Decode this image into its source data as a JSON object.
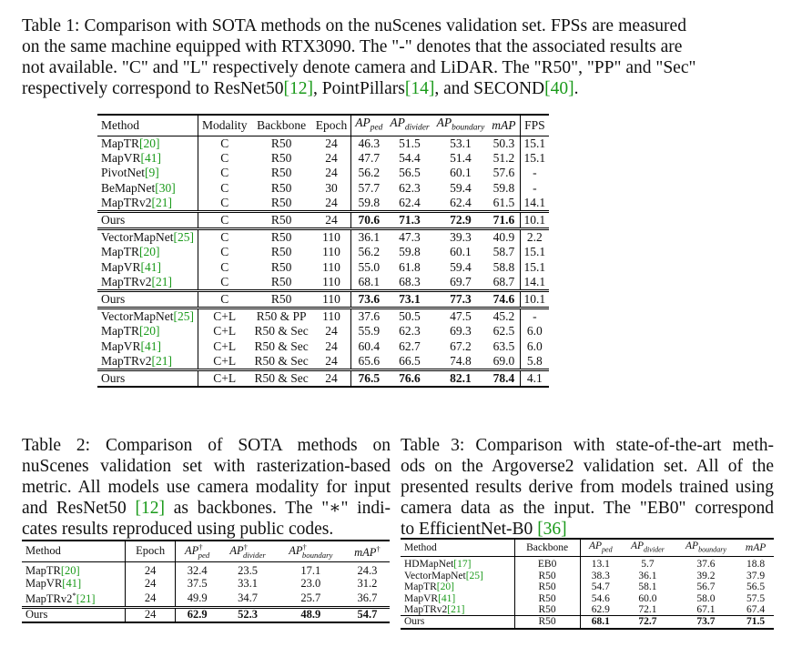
{
  "table1": {
    "caption_lines": [
      "Table 1:  Comparison with SOTA methods on the nuScenes validation set.  FPSs are measured",
      "on the same machine equipped with RTX3090.  The \"-\" denotes that the associated results are",
      "not available.  \"C\" and \"L\" respectively denote camera and LiDAR. The \"R50\", \"PP\" and \"Sec\"",
      "respectively correspond to ResNet50[12], PointPillars[14], and SECOND[40]."
    ],
    "headers": {
      "method": "Method",
      "modality": "Modality",
      "backbone": "Backbone",
      "epoch": "Epoch",
      "ap_ped": "AP",
      "ap_ped_sub": "ped",
      "ap_div": "AP",
      "ap_div_sub": "divider",
      "ap_bnd": "AP",
      "ap_bnd_sub": "boundary",
      "map": "mAP",
      "fps": "FPS"
    },
    "groups": [
      [
        {
          "method": "MapTR",
          "cite": "[20]",
          "mod": "C",
          "bb": "R50",
          "ep": "24",
          "ped": "46.3",
          "div": "51.5",
          "bnd": "53.1",
          "map": "50.3",
          "fps": "15.1"
        },
        {
          "method": "MapVR",
          "cite": "[41]",
          "mod": "C",
          "bb": "R50",
          "ep": "24",
          "ped": "47.7",
          "div": "54.4",
          "bnd": "51.4",
          "map": "51.2",
          "fps": "15.1"
        },
        {
          "method": "PivotNet",
          "cite": "[9]",
          "mod": "C",
          "bb": "R50",
          "ep": "24",
          "ped": "56.2",
          "div": "56.5",
          "bnd": "60.1",
          "map": "57.6",
          "fps": "-"
        },
        {
          "method": "BeMapNet",
          "cite": "[30]",
          "mod": "C",
          "bb": "R50",
          "ep": "30",
          "ped": "57.7",
          "div": "62.3",
          "bnd": "59.4",
          "map": "59.8",
          "fps": "-"
        },
        {
          "method": "MapTRv2",
          "cite": "[21]",
          "mod": "C",
          "bb": "R50",
          "ep": "24",
          "ped": "59.8",
          "div": "62.4",
          "bnd": "62.4",
          "map": "61.5",
          "fps": "14.1"
        }
      ],
      [
        {
          "method": "Ours",
          "cite": "",
          "mod": "C",
          "bb": "R50",
          "ep": "24",
          "ped": "70.6",
          "div": "71.3",
          "bnd": "72.9",
          "map": "71.6",
          "fps": "10.1",
          "bold": true
        }
      ],
      [
        {
          "method": "VectorMapNet",
          "cite": "[25]",
          "mod": "C",
          "bb": "R50",
          "ep": "110",
          "ped": "36.1",
          "div": "47.3",
          "bnd": "39.3",
          "map": "40.9",
          "fps": "2.2"
        },
        {
          "method": "MapTR",
          "cite": "[20]",
          "mod": "C",
          "bb": "R50",
          "ep": "110",
          "ped": "56.2",
          "div": "59.8",
          "bnd": "60.1",
          "map": "58.7",
          "fps": "15.1"
        },
        {
          "method": "MapVR",
          "cite": "[41]",
          "mod": "C",
          "bb": "R50",
          "ep": "110",
          "ped": "55.0",
          "div": "61.8",
          "bnd": "59.4",
          "map": "58.8",
          "fps": "15.1"
        },
        {
          "method": "MapTRv2",
          "cite": "[21]",
          "mod": "C",
          "bb": "R50",
          "ep": "110",
          "ped": "68.1",
          "div": "68.3",
          "bnd": "69.7",
          "map": "68.7",
          "fps": "14.1"
        }
      ],
      [
        {
          "method": "Ours",
          "cite": "",
          "mod": "C",
          "bb": "R50",
          "ep": "110",
          "ped": "73.6",
          "div": "73.1",
          "bnd": "77.3",
          "map": "74.6",
          "fps": "10.1",
          "bold": true
        }
      ],
      [
        {
          "method": "VectorMapNet",
          "cite": "[25]",
          "mod": "C+L",
          "bb": "R50 & PP",
          "ep": "110",
          "ped": "37.6",
          "div": "50.5",
          "bnd": "47.5",
          "map": "45.2",
          "fps": "-"
        },
        {
          "method": "MapTR",
          "cite": "[20]",
          "mod": "C+L",
          "bb": "R50 & Sec",
          "ep": "24",
          "ped": "55.9",
          "div": "62.3",
          "bnd": "69.3",
          "map": "62.5",
          "fps": "6.0"
        },
        {
          "method": "MapVR",
          "cite": "[41]",
          "mod": "C+L",
          "bb": "R50 & Sec",
          "ep": "24",
          "ped": "60.4",
          "div": "62.7",
          "bnd": "67.2",
          "map": "63.5",
          "fps": "6.0"
        },
        {
          "method": "MapTRv2",
          "cite": "[21]",
          "mod": "C+L",
          "bb": "R50 & Sec",
          "ep": "24",
          "ped": "65.6",
          "div": "66.5",
          "bnd": "74.8",
          "map": "69.0",
          "fps": "5.8"
        }
      ],
      [
        {
          "method": "Ours",
          "cite": "",
          "mod": "C+L",
          "bb": "R50 & Sec",
          "ep": "24",
          "ped": "76.5",
          "div": "76.6",
          "bnd": "82.1",
          "map": "78.4",
          "fps": "4.1",
          "bold": true
        }
      ]
    ]
  },
  "table2": {
    "caption_lines": [
      "Table 2:  Comparison of SOTA methods on",
      "nuScenes validation set with rasterization-based",
      "metric. All models use camera modality for input",
      "and ResNet50 [12] as backbones. The \"∗\" indi-",
      "cates results reproduced using public codes."
    ],
    "headers": {
      "method": "Method",
      "epoch": "Epoch",
      "ap_ped": "AP",
      "ap_ped_sub": "ped",
      "ap_div": "AP",
      "ap_div_sub": "divider",
      "ap_bnd": "AP",
      "ap_bnd_sub": "boundary",
      "map": "mAP",
      "dagger": "†"
    },
    "rows": [
      {
        "method": "MapTR",
        "star": "",
        "cite": "[20]",
        "ep": "24",
        "ped": "32.4",
        "div": "23.5",
        "bnd": "17.1",
        "map": "24.3"
      },
      {
        "method": "MapVR",
        "star": "",
        "cite": "[41]",
        "ep": "24",
        "ped": "37.5",
        "div": "33.1",
        "bnd": "23.0",
        "map": "31.2"
      },
      {
        "method": "MapTRv2",
        "star": "*",
        "cite": "[21]",
        "ep": "24",
        "ped": "49.9",
        "div": "34.7",
        "bnd": "25.7",
        "map": "36.7"
      }
    ],
    "ours": {
      "method": "Ours",
      "ep": "24",
      "ped": "62.9",
      "div": "52.3",
      "bnd": "48.9",
      "map": "54.7"
    }
  },
  "table3": {
    "caption_lines": [
      "Table 3: Comparison with state-of-the-art meth-",
      "ods on the Argoverse2 validation set. All of the",
      "presented results derive from models trained using",
      "camera data as the input. The \"EB0\" correspond",
      "to EfficientNet-B0 [36]"
    ],
    "headers": {
      "method": "Method",
      "backbone": "Backbone",
      "ap_ped": "AP",
      "ap_ped_sub": "ped",
      "ap_div": "AP",
      "ap_div_sub": "divider",
      "ap_bnd": "AP",
      "ap_bnd_sub": "boundary",
      "map": "mAP"
    },
    "rows": [
      {
        "method": "HDMapNet",
        "cite": "[17]",
        "bb": "EB0",
        "ped": "13.1",
        "div": "5.7",
        "bnd": "37.6",
        "map": "18.8"
      },
      {
        "method": "VectorMapNet",
        "cite": "[25]",
        "bb": "R50",
        "ped": "38.3",
        "div": "36.1",
        "bnd": "39.2",
        "map": "37.9"
      },
      {
        "method": "MapTR",
        "cite": "[20]",
        "bb": "R50",
        "ped": "54.7",
        "div": "58.1",
        "bnd": "56.7",
        "map": "56.5"
      },
      {
        "method": "MapVR",
        "cite": "[41]",
        "bb": "R50",
        "ped": "54.6",
        "div": "60.0",
        "bnd": "58.0",
        "map": "57.5"
      },
      {
        "method": "MapTRv2",
        "cite": "[21]",
        "bb": "R50",
        "ped": "62.9",
        "div": "72.1",
        "bnd": "67.1",
        "map": "67.4"
      }
    ],
    "ours": {
      "method": "Ours",
      "bb": "R50",
      "ped": "68.1",
      "div": "72.7",
      "bnd": "73.7",
      "map": "71.5"
    }
  }
}
